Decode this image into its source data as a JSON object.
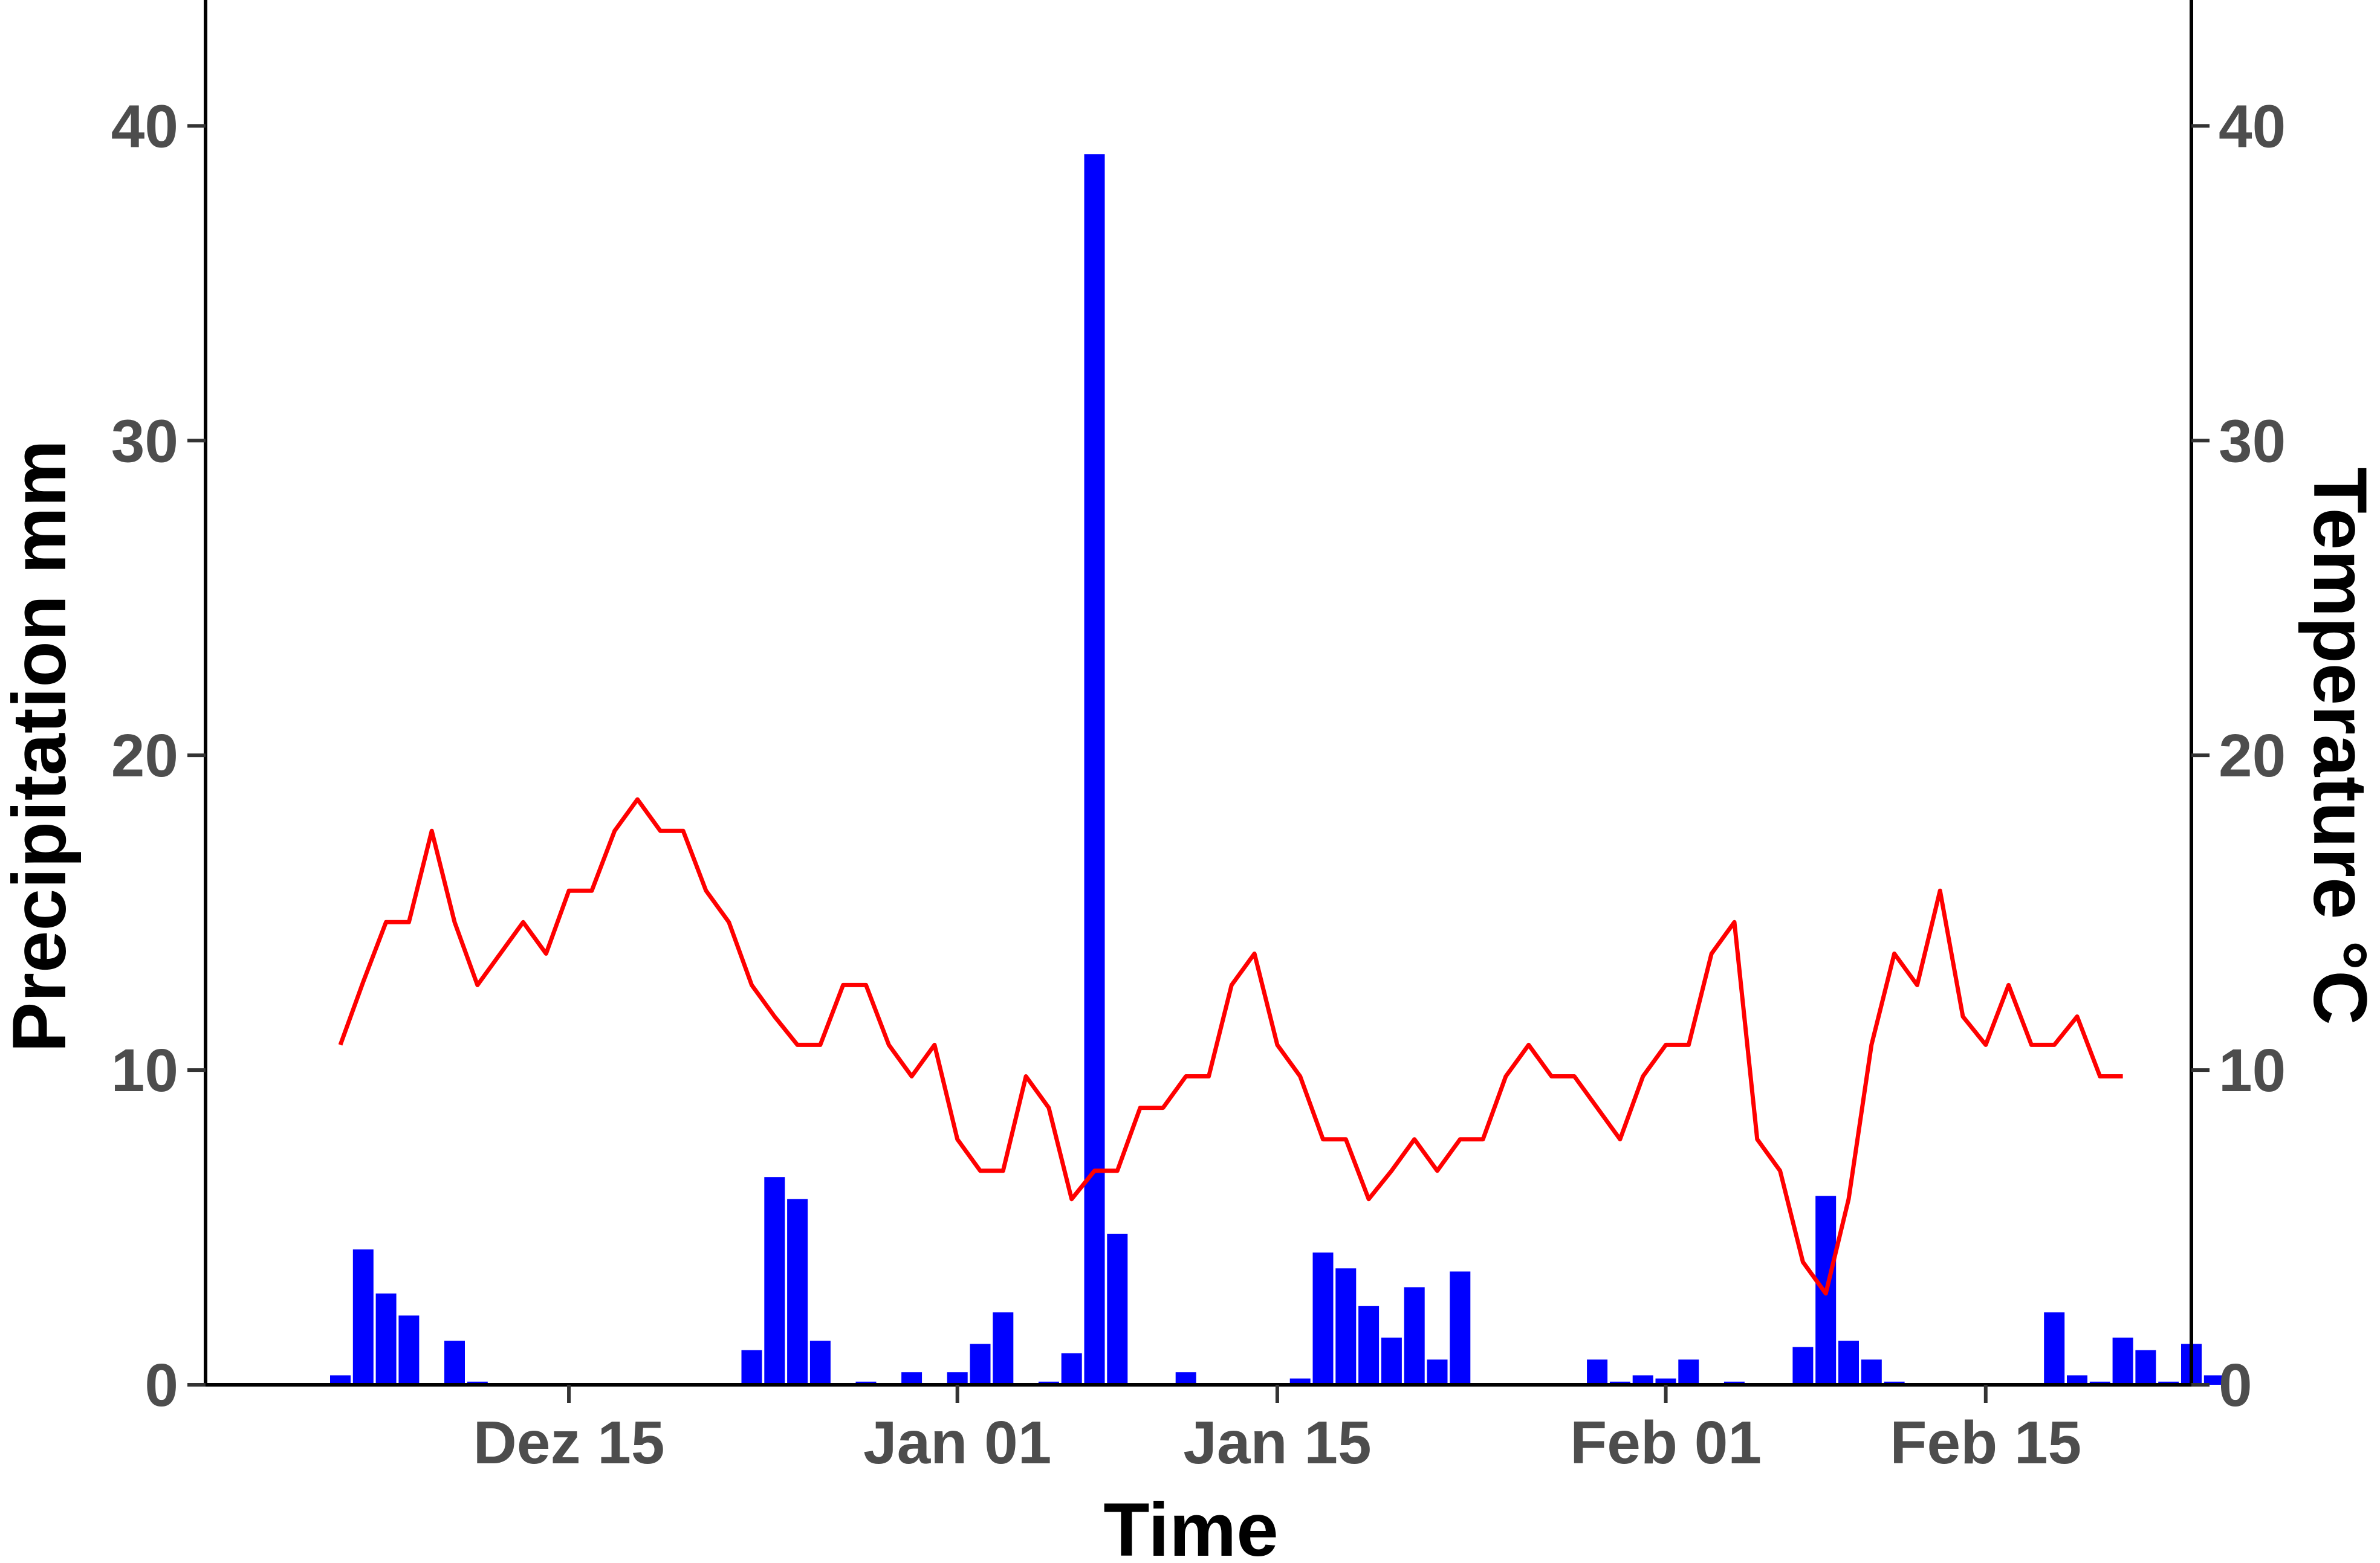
{
  "chart_data": {
    "type": "bar",
    "title": "",
    "xlabel": "Time",
    "ylabel": "Precipitation mm",
    "y2label": "Temperature °C",
    "ylim": [
      0,
      44
    ],
    "y2lim": [
      0,
      44
    ],
    "y_ticks": [
      0,
      10,
      20,
      30,
      40
    ],
    "y2_ticks": [
      0,
      10,
      20,
      30,
      40
    ],
    "x_ticks": [
      {
        "label": "Dez 15",
        "day": 15
      },
      {
        "label": "Jan 01",
        "day": 32
      },
      {
        "label": "Jan 15",
        "day": 46
      },
      {
        "label": "Feb 01",
        "day": 63
      },
      {
        "label": "Feb 15",
        "day": 77
      }
    ],
    "x_range_days": [
      -0.9,
      86
    ],
    "grid": false,
    "series": [
      {
        "name": "",
        "type": "bar",
        "axis": "left",
        "start_day": 5,
        "values": [
          0.3,
          4.3,
          2.9,
          2.2,
          0,
          1.4,
          0.1,
          0,
          0,
          0,
          0,
          0,
          0,
          0,
          0,
          0,
          0,
          0,
          1.1,
          6.6,
          5.9,
          1.4,
          0,
          0.1,
          0,
          0.4,
          0,
          0.4,
          1.3,
          2.3,
          0,
          0.1,
          1.0,
          39.1,
          4.8,
          0,
          0,
          0.4,
          0,
          0,
          0,
          0,
          0.2,
          4.2,
          3.7,
          2.5,
          1.5,
          3.1,
          0.8,
          3.6,
          0,
          0,
          0,
          0,
          0,
          0.8,
          0.1,
          0.3,
          0.2,
          0.8,
          0,
          0.1,
          0,
          0,
          1.2,
          6.0,
          1.4,
          0.8,
          0.1,
          0,
          0,
          0,
          0,
          0,
          0,
          2.3,
          0.3,
          0.1,
          1.5,
          1.1,
          0.1,
          1.3,
          0.3
        ],
        "color": "#0000ff"
      },
      {
        "name": "",
        "type": "line",
        "axis": "right",
        "start_day": 5,
        "values": [
          10.8,
          12.8,
          14.7,
          14.7,
          17.6,
          14.7,
          12.7,
          13.7,
          14.7,
          13.7,
          15.7,
          15.7,
          17.6,
          18.6,
          17.6,
          17.6,
          15.7,
          14.7,
          12.7,
          11.7,
          10.8,
          10.8,
          12.7,
          12.7,
          10.8,
          9.8,
          10.8,
          7.8,
          6.8,
          6.8,
          9.8,
          8.8,
          5.9,
          6.8,
          6.8,
          8.8,
          8.8,
          9.8,
          9.8,
          12.7,
          13.7,
          10.8,
          9.8,
          7.8,
          7.8,
          5.9,
          6.8,
          7.8,
          6.8,
          7.8,
          7.8,
          9.8,
          10.8,
          9.8,
          9.8,
          8.8,
          7.8,
          9.8,
          10.8,
          10.8,
          13.7,
          14.7,
          7.8,
          6.8,
          3.9,
          2.9,
          5.9,
          10.8,
          13.7,
          12.7,
          15.7,
          11.7,
          10.8,
          12.7,
          10.8,
          10.8,
          11.7,
          9.8,
          9.8
        ],
        "color": "#ff0000"
      }
    ]
  }
}
